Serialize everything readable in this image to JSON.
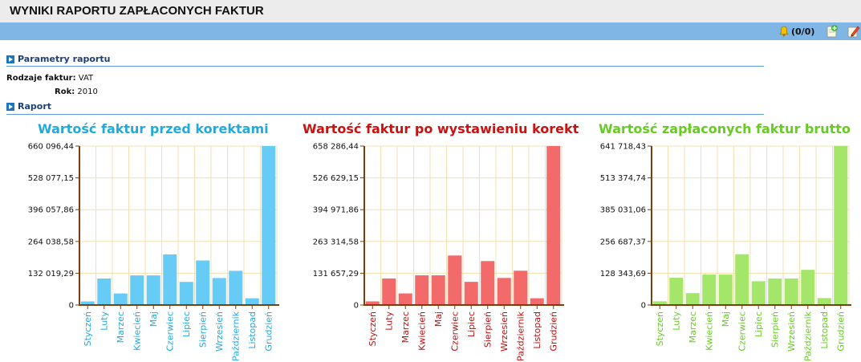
{
  "header": {
    "title": "WYNIKI RAPORTU ZAPŁACONYCH FAKTUR"
  },
  "toolbar": {
    "notifications": "(0/0)"
  },
  "params_section": {
    "title": "Parametry raportu",
    "rodzaje_label": "Rodzaje faktur:",
    "rodzaje_value": "VAT",
    "rok_label": "Rok:",
    "rok_value": "2010"
  },
  "report_section": {
    "title": "Raport"
  },
  "chart_data": [
    {
      "type": "bar",
      "title": "Wartość faktur przed korektami",
      "color": "#66ccf5",
      "title_color": "#22aadd",
      "label_color": "#22aadd",
      "categories": [
        "Styczeń",
        "Luty",
        "Marzec",
        "Kwiecień",
        "Maj",
        "Czerwiec",
        "Lipiec",
        "Sierpień",
        "Wrzesień",
        "Październik",
        "Listopad",
        "Grudzień"
      ],
      "values": [
        15000,
        110000,
        48000,
        123000,
        123000,
        210000,
        96000,
        185000,
        112000,
        142000,
        28000,
        660096.44
      ],
      "ylim": [
        0,
        660096.44
      ],
      "yticks": [
        "0",
        "132 019,29",
        "264 038,58",
        "396 057,86",
        "528 077,15",
        "660 096,44"
      ],
      "grid": true
    },
    {
      "type": "bar",
      "title": "Wartość faktur po wystawieniu korekt",
      "color": "#f26a6a",
      "title_color": "#cc1111",
      "label_color": "#bb1111",
      "categories": [
        "Styczeń",
        "Luty",
        "Marzec",
        "Kwiecień",
        "Maj",
        "Czerwiec",
        "Lipiec",
        "Sierpień",
        "Wrzesień",
        "Październik",
        "Listopad",
        "Grudzień"
      ],
      "values": [
        15000,
        110000,
        48000,
        123000,
        123000,
        205000,
        96000,
        182000,
        112000,
        142000,
        28000,
        658286.44
      ],
      "ylim": [
        0,
        658286.44
      ],
      "yticks": [
        "0",
        "131 657,29",
        "263 314,58",
        "394 971,86",
        "526 629,15",
        "658 286,44"
      ],
      "grid": true
    },
    {
      "type": "bar",
      "title": "Wartość zapłaconych faktur brutto",
      "color": "#a3e66a",
      "title_color": "#66cc22",
      "label_color": "#66cc22",
      "categories": [
        "Styczeń",
        "Luty",
        "Marzec",
        "Kwiecień",
        "Maj",
        "Czerwiec",
        "Lipiec",
        "Sierpień",
        "Wrzesień",
        "Październik",
        "Listopad",
        "Grudzień"
      ],
      "values": [
        15000,
        110000,
        48000,
        123000,
        123000,
        205000,
        96000,
        107000,
        107000,
        142000,
        28000,
        641718.43
      ],
      "ylim": [
        0,
        641718.43
      ],
      "yticks": [
        "0",
        "128 343,69",
        "256 687,37",
        "385 031,06",
        "513 374,74",
        "641 718,43"
      ],
      "grid": true
    }
  ]
}
